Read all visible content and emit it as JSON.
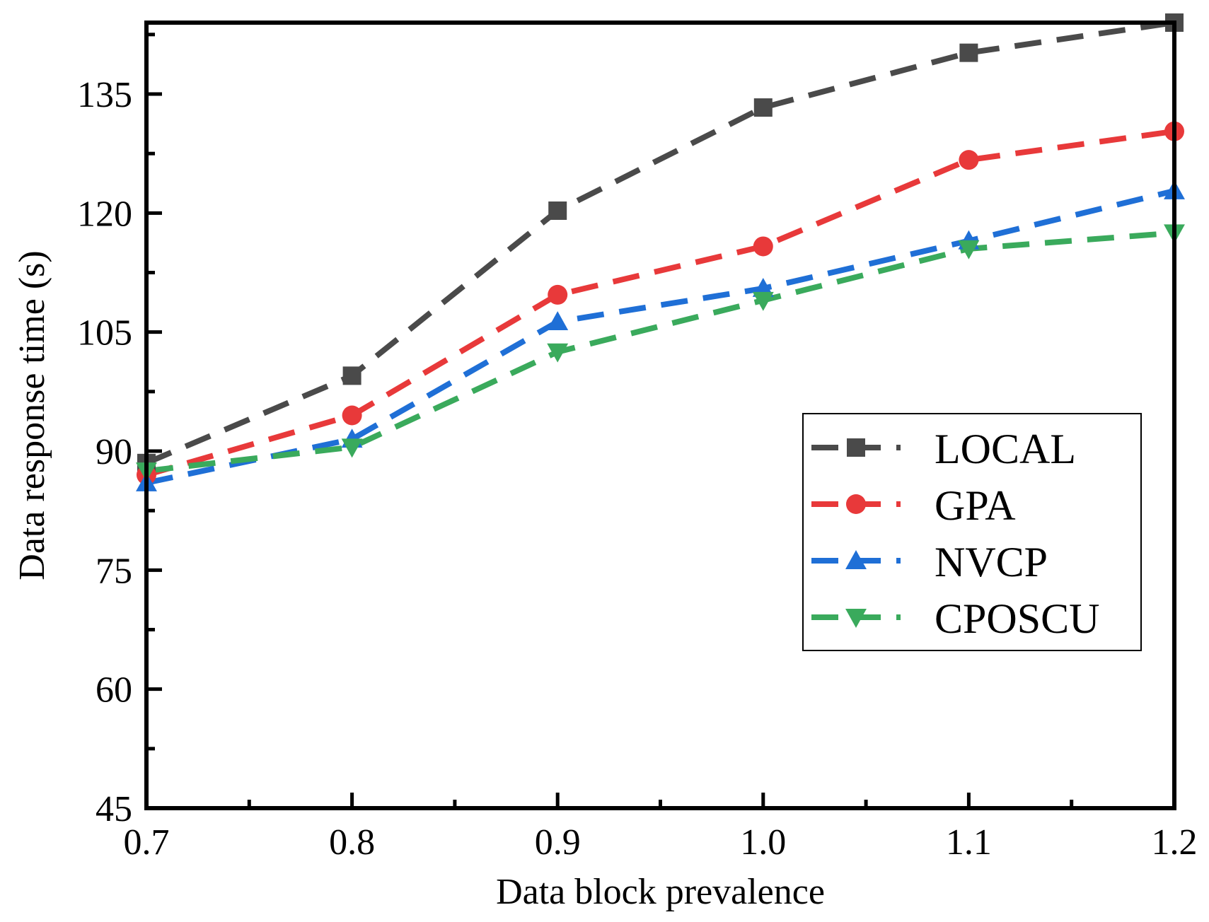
{
  "chart_data": {
    "type": "line",
    "title": "",
    "xlabel": "Data block prevalence",
    "ylabel": "Data response time (s)",
    "x": [
      0.7,
      0.8,
      0.9,
      1.0,
      1.1,
      1.2
    ],
    "x_tick_labels": [
      "0.7",
      "0.8",
      "0.9",
      "1.0",
      "1.1",
      "1.2"
    ],
    "xlim": [
      0.7,
      1.2
    ],
    "ylim": [
      45,
      144
    ],
    "y_ticks": [
      45,
      60,
      75,
      90,
      105,
      120,
      135
    ],
    "y_tick_labels": [
      "45",
      "60",
      "75",
      "90",
      "105",
      "120",
      "135"
    ],
    "grid": false,
    "legend_position": "center-right",
    "series": [
      {
        "name": "LOCAL",
        "marker": "square",
        "color": "#4a4a4a",
        "values": [
          88.5,
          99.5,
          120.3,
          133.3,
          140.2,
          144.0
        ]
      },
      {
        "name": "GPA",
        "marker": "circle",
        "color": "#e8393a",
        "values": [
          87.0,
          94.5,
          109.7,
          115.8,
          126.7,
          130.3
        ]
      },
      {
        "name": "NVCP",
        "marker": "triangle-up",
        "color": "#1f6fd6",
        "values": [
          86.0,
          91.5,
          106.3,
          110.5,
          116.5,
          122.8
        ]
      },
      {
        "name": "CPOSCU",
        "marker": "triangle-down",
        "color": "#3aaa5c",
        "values": [
          87.5,
          90.5,
          102.5,
          109.0,
          115.5,
          117.5
        ]
      }
    ]
  }
}
